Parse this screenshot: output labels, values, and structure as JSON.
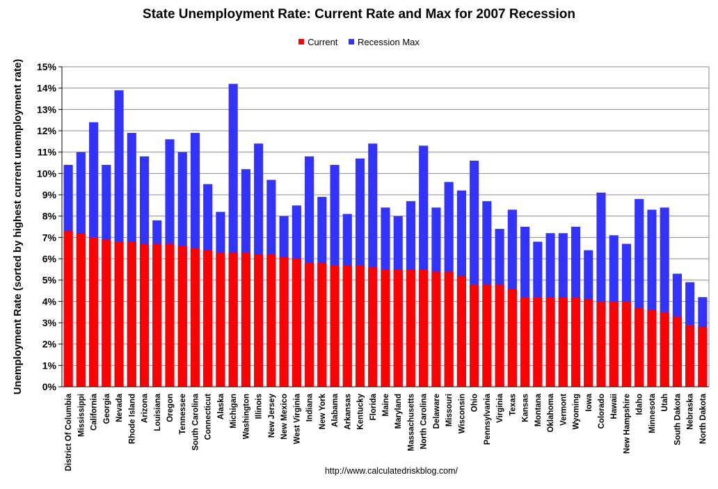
{
  "chart_data": {
    "type": "bar",
    "title": "State Unemployment Rate: Current Rate and Max for 2007 Recession",
    "ylabel": "Unemployment Rate (sorted by highest current unemployment rate)",
    "xlabel": "",
    "ylim": [
      0,
      15
    ],
    "y_ticks": [
      "0%",
      "1%",
      "2%",
      "3%",
      "4%",
      "5%",
      "6%",
      "7%",
      "8%",
      "9%",
      "10%",
      "11%",
      "12%",
      "13%",
      "14%",
      "15%"
    ],
    "grid": true,
    "legend_position": "top",
    "source": "http://www.calculatedriskblog.com/",
    "categories": [
      "District Of Columbia",
      "Mississippi",
      "California",
      "Georgia",
      "Nevada",
      "Rhode Island",
      "Arizona",
      "Louisiana",
      "Oregon",
      "Tennessee",
      "South Carolina",
      "Connecticut",
      "Alaska",
      "Michigan",
      "Washington",
      "Illinois",
      "New Jersey",
      "New Mexico",
      "West Virginia",
      "Indiana",
      "New York",
      "Alabama",
      "Arkansas",
      "Kentucky",
      "Florida",
      "Maine",
      "Maryland",
      "Massachusetts",
      "North Carolina",
      "Delaware",
      "Missouri",
      "Wisconsin",
      "Ohio",
      "Pennsylvania",
      "Virginia",
      "Texas",
      "Kansas",
      "Montana",
      "Oklahoma",
      "Vermont",
      "Wyoming",
      "Iowa",
      "Colorado",
      "Hawaii",
      "New Hampshire",
      "Idaho",
      "Minnesota",
      "Utah",
      "South Dakota",
      "Nebraska",
      "North Dakota"
    ],
    "series": [
      {
        "name": "Current",
        "color": "#ff0000",
        "values": [
          7.3,
          7.2,
          7.0,
          6.9,
          6.8,
          6.8,
          6.7,
          6.7,
          6.7,
          6.6,
          6.5,
          6.4,
          6.3,
          6.3,
          6.3,
          6.2,
          6.2,
          6.1,
          6.0,
          5.8,
          5.8,
          5.7,
          5.7,
          5.7,
          5.6,
          5.5,
          5.5,
          5.5,
          5.5,
          5.4,
          5.4,
          5.2,
          4.8,
          4.8,
          4.8,
          4.6,
          4.2,
          4.2,
          4.2,
          4.2,
          4.2,
          4.1,
          4.0,
          4.0,
          4.0,
          3.7,
          3.6,
          3.5,
          3.3,
          2.9,
          2.8
        ]
      },
      {
        "name": "Recession Max",
        "color": "#3333ff",
        "values": [
          10.4,
          11.0,
          12.4,
          10.4,
          13.9,
          11.9,
          10.8,
          7.8,
          11.6,
          11.0,
          11.9,
          9.5,
          8.2,
          14.2,
          10.2,
          11.4,
          9.7,
          8.0,
          8.5,
          10.8,
          8.9,
          10.4,
          8.1,
          10.7,
          11.4,
          8.4,
          8.0,
          8.7,
          11.3,
          8.4,
          9.6,
          9.2,
          10.6,
          8.7,
          7.4,
          8.3,
          7.5,
          6.8,
          7.2,
          7.2,
          7.5,
          6.4,
          9.1,
          7.1,
          6.7,
          8.8,
          8.3,
          8.4,
          5.3,
          4.9,
          4.2
        ]
      }
    ]
  }
}
